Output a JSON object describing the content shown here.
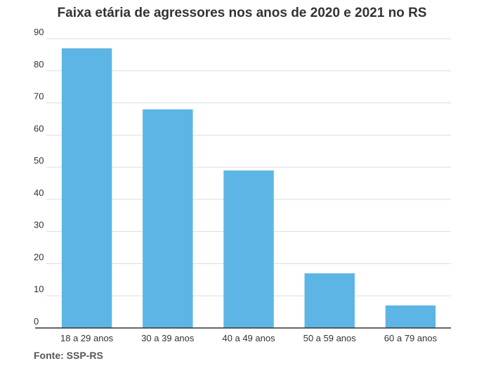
{
  "chart_data": {
    "type": "bar",
    "title": "Faixa etária de agressores nos anos de 2020 e 2021 no RS",
    "xlabel": "",
    "ylabel": "",
    "categories": [
      "18 a 29 anos",
      "30 a 39 anos",
      "40 a 49 anos",
      "50 a 59 anos",
      "60 a 79 anos"
    ],
    "values": [
      87,
      68,
      49,
      17,
      7
    ],
    "ylim": [
      0,
      90
    ],
    "yticks": [
      0,
      10,
      20,
      30,
      40,
      50,
      60,
      70,
      80,
      90
    ],
    "grid": true,
    "bar_color": "#5db5e5",
    "grid_color": "#dddddd",
    "axis_color": "#333333"
  },
  "source": "Fonte: SSP-RS"
}
